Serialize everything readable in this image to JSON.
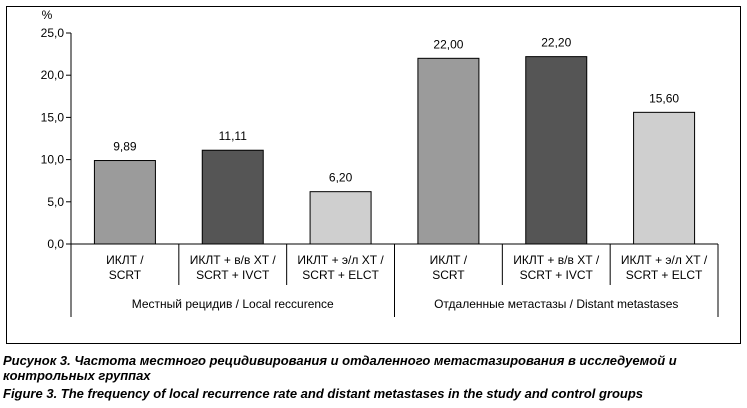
{
  "chart_data": {
    "type": "bar",
    "ylabel": "%",
    "ylim": [
      0,
      25
    ],
    "yticks": [
      "0,0",
      "5,0",
      "10,0",
      "15,0",
      "20,0",
      "25,0"
    ],
    "grid": false,
    "categories": [
      {
        "line1": "ИКЛТ /",
        "line2": "SCRT",
        "group": 0
      },
      {
        "line1": "ИКЛТ + в/в ХТ /",
        "line2": "SCRT + IVCT",
        "group": 0
      },
      {
        "line1": "ИКЛТ + э/л ХТ /",
        "line2": "SCRT + ELCT",
        "group": 0
      },
      {
        "line1": "ИКЛТ /",
        "line2": "SCRT",
        "group": 1
      },
      {
        "line1": "ИКЛТ + в/в ХТ /",
        "line2": "SCRT + IVCT",
        "group": 1
      },
      {
        "line1": "ИКЛТ + э/л ХТ /",
        "line2": "SCRT + ELCT",
        "group": 1
      }
    ],
    "values": [
      9.89,
      11.11,
      6.2,
      22.0,
      22.2,
      15.6
    ],
    "value_labels": [
      "9,89",
      "11,11",
      "6,20",
      "22,00",
      "22,20",
      "15,60"
    ],
    "groups": [
      "Местный рецидив / Local reccurence",
      "Отдаленные метастазы / Distant metastases"
    ],
    "colors": [
      "#9b9b9b",
      "#555555",
      "#cfcfcf",
      "#9b9b9b",
      "#555555",
      "#cfcfcf"
    ]
  },
  "caption": {
    "ru": "Рисунок 3. Частота местного рецидивирования и отдаленного метастазирования в исследуемой и контрольных группах",
    "en": "Figure 3. The frequency of local recurrence rate and distant metastases in the study and control groups"
  }
}
